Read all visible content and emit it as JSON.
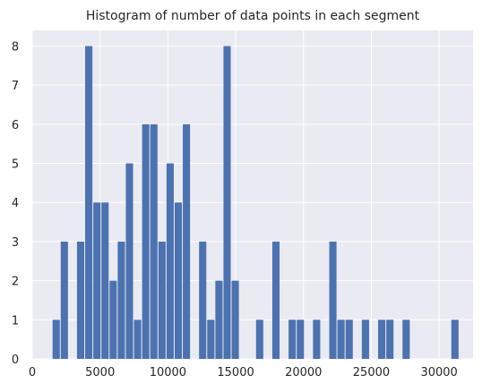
{
  "chart_data": {
    "type": "bar",
    "title": "Histogram of number of data points in each segment",
    "xlabel": "",
    "ylabel": "",
    "xlim": [
      0,
      32500
    ],
    "ylim": [
      0,
      8.4
    ],
    "x_ticks": [
      0,
      5000,
      10000,
      15000,
      20000,
      25000,
      30000
    ],
    "x_tick_labels": [
      "0",
      "5000",
      "10000",
      "15000",
      "20000",
      "25000",
      "30000"
    ],
    "y_ticks": [
      0,
      1,
      2,
      3,
      4,
      5,
      6,
      7,
      8
    ],
    "y_tick_labels": [
      "0",
      "1",
      "2",
      "3",
      "4",
      "5",
      "6",
      "7",
      "8"
    ],
    "grid": true,
    "bin_width": 600,
    "bins": [
      {
        "x": 1500,
        "count": 1
      },
      {
        "x": 2100,
        "count": 3
      },
      {
        "x": 3300,
        "count": 3
      },
      {
        "x": 3900,
        "count": 8
      },
      {
        "x": 4500,
        "count": 4
      },
      {
        "x": 5100,
        "count": 4
      },
      {
        "x": 5700,
        "count": 2
      },
      {
        "x": 6300,
        "count": 3
      },
      {
        "x": 6900,
        "count": 5
      },
      {
        "x": 7500,
        "count": 1
      },
      {
        "x": 8100,
        "count": 6
      },
      {
        "x": 8700,
        "count": 6
      },
      {
        "x": 9300,
        "count": 3
      },
      {
        "x": 9900,
        "count": 5
      },
      {
        "x": 10500,
        "count": 4
      },
      {
        "x": 11100,
        "count": 6
      },
      {
        "x": 12300,
        "count": 3
      },
      {
        "x": 12900,
        "count": 1
      },
      {
        "x": 13500,
        "count": 2
      },
      {
        "x": 14100,
        "count": 8
      },
      {
        "x": 14700,
        "count": 2
      },
      {
        "x": 16500,
        "count": 1
      },
      {
        "x": 17700,
        "count": 3
      },
      {
        "x": 18900,
        "count": 1
      },
      {
        "x": 19500,
        "count": 1
      },
      {
        "x": 20700,
        "count": 1
      },
      {
        "x": 21900,
        "count": 3
      },
      {
        "x": 22500,
        "count": 1
      },
      {
        "x": 23100,
        "count": 1
      },
      {
        "x": 24300,
        "count": 1
      },
      {
        "x": 25500,
        "count": 1
      },
      {
        "x": 26100,
        "count": 1
      },
      {
        "x": 27300,
        "count": 1
      },
      {
        "x": 30900,
        "count": 1
      }
    ],
    "colors": {
      "bar": "#4c72b0",
      "background": "#eaeaf2",
      "grid": "#ffffff"
    }
  }
}
